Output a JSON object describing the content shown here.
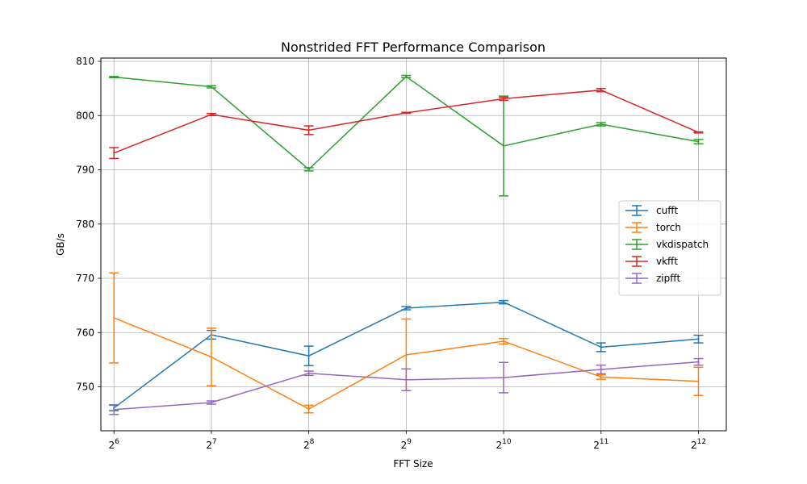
{
  "chart_data": {
    "type": "line",
    "title": "Nonstrided FFT Performance Comparison",
    "xlabel": "FFT Size",
    "ylabel": "GB/s",
    "x_ticks": [
      {
        "base": "2",
        "exp": "6"
      },
      {
        "base": "2",
        "exp": "7"
      },
      {
        "base": "2",
        "exp": "8"
      },
      {
        "base": "2",
        "exp": "9"
      },
      {
        "base": "2",
        "exp": "10"
      },
      {
        "base": "2",
        "exp": "11"
      },
      {
        "base": "2",
        "exp": "12"
      }
    ],
    "x": [
      64,
      128,
      256,
      512,
      1024,
      2048,
      4096
    ],
    "y_ticks": [
      "750",
      "760",
      "770",
      "780",
      "790",
      "800",
      "810"
    ],
    "ylim": [
      741.9,
      810.6
    ],
    "grid": true,
    "legend_position": "center-right",
    "series": [
      {
        "name": "cufft",
        "color": "#1f77b4",
        "values": [
          746.1,
          759.6,
          755.7,
          764.5,
          765.6,
          757.3,
          758.8
        ],
        "errors": [
          0.5,
          0.8,
          1.8,
          0.3,
          0.3,
          0.8,
          0.7
        ]
      },
      {
        "name": "torch",
        "color": "#ff7f0e",
        "values": [
          762.7,
          755.5,
          745.9,
          755.9,
          758.4,
          751.8,
          751.0
        ],
        "errors": [
          8.3,
          5.3,
          0.7,
          6.6,
          0.5,
          0.4,
          2.6
        ]
      },
      {
        "name": "vkdispatch",
        "color": "#2ca02c",
        "values": [
          807.1,
          805.3,
          790.1,
          807.2,
          794.4,
          798.4,
          795.2
        ],
        "errors": [
          0.1,
          0.2,
          0.3,
          0.2,
          9.2,
          0.3,
          0.4
        ]
      },
      {
        "name": "vkfft",
        "color": "#d62728",
        "values": [
          793.1,
          800.2,
          797.3,
          800.5,
          803.1,
          804.7,
          796.9
        ],
        "errors": [
          1.0,
          0.2,
          0.8,
          0.1,
          0.3,
          0.3,
          0.1
        ]
      },
      {
        "name": "zipfft",
        "color": "#9467bd",
        "values": [
          745.8,
          747.1,
          752.5,
          751.3,
          751.7,
          753.2,
          754.6
        ],
        "errors": [
          0.9,
          0.3,
          0.4,
          2.0,
          2.8,
          0.8,
          0.6
        ]
      }
    ]
  }
}
